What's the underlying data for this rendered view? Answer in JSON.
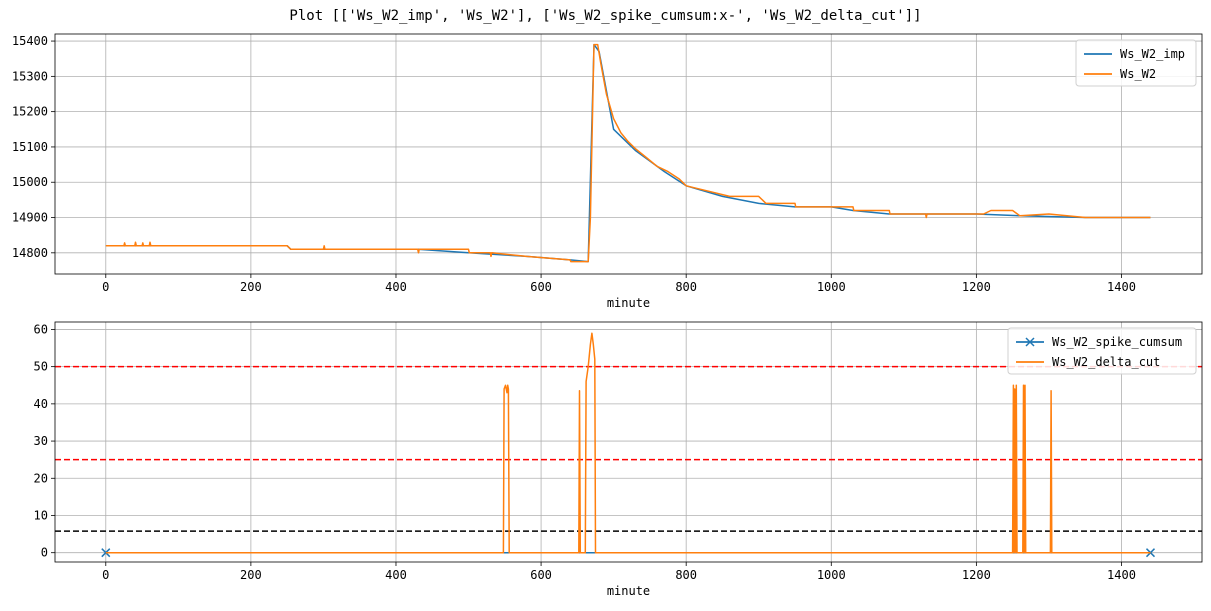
{
  "title": "Plot [['Ws_W2_imp', 'Ws_W2'], ['Ws_W2_spike_cumsum:x-', 'Ws_W2_delta_cut']]",
  "chart_data": [
    {
      "type": "line",
      "xlabel": "minute",
      "ylabel": "",
      "xlim": [
        -70,
        1511
      ],
      "ylim": [
        14740,
        15420
      ],
      "xticks": [
        0,
        200,
        400,
        600,
        800,
        1000,
        1200,
        1400
      ],
      "yticks": [
        14800,
        14900,
        15000,
        15100,
        15200,
        15300,
        15400
      ],
      "grid": true,
      "legend": "top-right",
      "series": [
        {
          "name": "Ws_W2_imp",
          "color": "#1f77b4",
          "points": [
            [
              0,
              14820
            ],
            [
              250,
              14820
            ],
            [
              255,
              14810
            ],
            [
              430,
              14810
            ],
            [
              500,
              14800
            ],
            [
              580,
              14790
            ],
            [
              640,
              14780
            ],
            [
              665,
              14775
            ],
            [
              673,
              15390
            ],
            [
              680,
              15370
            ],
            [
              700,
              15150
            ],
            [
              730,
              15090
            ],
            [
              770,
              15030
            ],
            [
              800,
              14990
            ],
            [
              850,
              14960
            ],
            [
              900,
              14940
            ],
            [
              950,
              14930
            ],
            [
              1000,
              14930
            ],
            [
              1030,
              14920
            ],
            [
              1080,
              14910
            ],
            [
              1130,
              14910
            ],
            [
              1200,
              14910
            ],
            [
              1260,
              14905
            ],
            [
              1350,
              14900
            ],
            [
              1440,
              14900
            ]
          ]
        },
        {
          "name": "Ws_W2",
          "color": "#ff7f0e",
          "points": [
            [
              0,
              14820
            ],
            [
              25,
              14820
            ],
            [
              26,
              14828
            ],
            [
              27,
              14820
            ],
            [
              40,
              14820
            ],
            [
              41,
              14830
            ],
            [
              42,
              14820
            ],
            [
              50,
              14820
            ],
            [
              51,
              14828
            ],
            [
              52,
              14820
            ],
            [
              60,
              14820
            ],
            [
              61,
              14830
            ],
            [
              62,
              14820
            ],
            [
              250,
              14820
            ],
            [
              255,
              14810
            ],
            [
              300,
              14810
            ],
            [
              301,
              14820
            ],
            [
              302,
              14810
            ],
            [
              430,
              14810
            ],
            [
              431,
              14800
            ],
            [
              432,
              14810
            ],
            [
              500,
              14810
            ],
            [
              501,
              14800
            ],
            [
              530,
              14800
            ],
            [
              531,
              14790
            ],
            [
              532,
              14800
            ],
            [
              580,
              14790
            ],
            [
              640,
              14780
            ],
            [
              641,
              14775
            ],
            [
              665,
              14775
            ],
            [
              668,
              14900
            ],
            [
              672,
              15300
            ],
            [
              673,
              15390
            ],
            [
              678,
              15390
            ],
            [
              682,
              15340
            ],
            [
              690,
              15250
            ],
            [
              700,
              15180
            ],
            [
              710,
              15140
            ],
            [
              720,
              15115
            ],
            [
              730,
              15095
            ],
            [
              745,
              15070
            ],
            [
              760,
              15045
            ],
            [
              775,
              15030
            ],
            [
              790,
              15010
            ],
            [
              800,
              14990
            ],
            [
              820,
              14980
            ],
            [
              840,
              14970
            ],
            [
              860,
              14960
            ],
            [
              900,
              14960
            ],
            [
              910,
              14940
            ],
            [
              950,
              14940
            ],
            [
              951,
              14930
            ],
            [
              1000,
              14930
            ],
            [
              1030,
              14930
            ],
            [
              1031,
              14920
            ],
            [
              1080,
              14920
            ],
            [
              1081,
              14910
            ],
            [
              1130,
              14910
            ],
            [
              1131,
              14900
            ],
            [
              1132,
              14910
            ],
            [
              1210,
              14910
            ],
            [
              1220,
              14920
            ],
            [
              1250,
              14920
            ],
            [
              1260,
              14905
            ],
            [
              1300,
              14910
            ],
            [
              1350,
              14900
            ],
            [
              1440,
              14900
            ]
          ]
        }
      ]
    },
    {
      "type": "line",
      "xlabel": "minute",
      "ylabel": "",
      "xlim": [
        -70,
        1511
      ],
      "ylim": [
        -2.5,
        62
      ],
      "xticks": [
        0,
        200,
        400,
        600,
        800,
        1000,
        1200,
        1400
      ],
      "yticks": [
        0,
        10,
        20,
        30,
        40,
        50,
        60
      ],
      "grid": true,
      "legend": "top-right",
      "hlines": [
        {
          "y": 50,
          "color": "#ff0000"
        },
        {
          "y": 25,
          "color": "#ff0000"
        },
        {
          "y": 5.8,
          "color": "#000000"
        }
      ],
      "series": [
        {
          "name": "Ws_W2_spike_cumsum",
          "color": "#1f77b4",
          "marker": "x",
          "points": [
            [
              0,
              0
            ],
            [
              1440,
              0
            ]
          ]
        },
        {
          "name": "Ws_W2_delta_cut",
          "color": "#ff7f0e",
          "points": [
            [
              0,
              0
            ],
            [
              548,
              0
            ],
            [
              549,
              44
            ],
            [
              551,
              45
            ],
            [
              553,
              43
            ],
            [
              554,
              45
            ],
            [
              555,
              44
            ],
            [
              556,
              0
            ],
            [
              652,
              0
            ],
            [
              653,
              43.5
            ],
            [
              654,
              0
            ],
            [
              661,
              0
            ],
            [
              662,
              46
            ],
            [
              665,
              50
            ],
            [
              668,
              56
            ],
            [
              670,
              59
            ],
            [
              672,
              56
            ],
            [
              674,
              52
            ],
            [
              675,
              0
            ],
            [
              1250,
              0
            ],
            [
              1251,
              45
            ],
            [
              1252,
              0
            ],
            [
              1253,
              44
            ],
            [
              1254,
              0
            ],
            [
              1255,
              45
            ],
            [
              1256,
              0
            ],
            [
              1264,
              0
            ],
            [
              1265,
              45
            ],
            [
              1266,
              0
            ],
            [
              1267,
              45
            ],
            [
              1268,
              0
            ],
            [
              1302,
              0
            ],
            [
              1303,
              43.5
            ],
            [
              1304,
              0
            ],
            [
              1440,
              0
            ]
          ]
        }
      ]
    }
  ]
}
